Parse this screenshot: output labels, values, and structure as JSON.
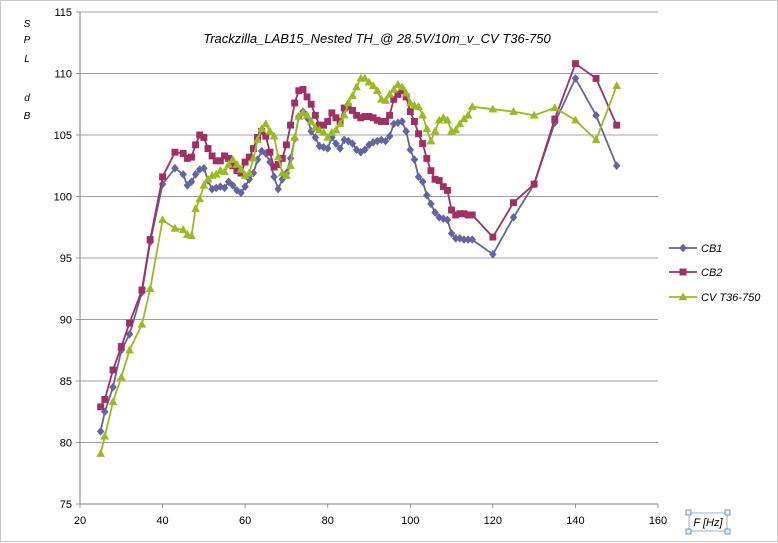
{
  "chart_data": {
    "type": "line",
    "title": "Trackzilla_LAB15_Nested TH_@ 28.5V/10m_v_CV T36-750",
    "ylabel_chars": [
      "S",
      "P",
      "L",
      "",
      "d",
      "B"
    ],
    "xlabel": "F [Hz]",
    "xlim": [
      20,
      160
    ],
    "ylim": [
      75,
      115
    ],
    "xticks": [
      20,
      40,
      60,
      80,
      100,
      120,
      140,
      160
    ],
    "yticks": [
      75,
      80,
      85,
      90,
      95,
      100,
      105,
      110,
      115
    ],
    "grid": "horizontal",
    "legend_position": "right",
    "series": [
      {
        "name": "CB1",
        "color": "#6464a0",
        "marker": "diamond",
        "points": [
          [
            25,
            80.9
          ],
          [
            26,
            82.5
          ],
          [
            28,
            84.5
          ],
          [
            30,
            87.5
          ],
          [
            32,
            88.8
          ],
          [
            35,
            92.2
          ],
          [
            37,
            96.3
          ],
          [
            40,
            101.0
          ],
          [
            43,
            102.3
          ],
          [
            45,
            101.8
          ],
          [
            46,
            100.9
          ],
          [
            47,
            101.2
          ],
          [
            48,
            101.8
          ],
          [
            49,
            102.2
          ],
          [
            50,
            102.3
          ],
          [
            51,
            101.3
          ],
          [
            52,
            100.6
          ],
          [
            53,
            100.7
          ],
          [
            54,
            100.8
          ],
          [
            55,
            100.7
          ],
          [
            56,
            101.2
          ],
          [
            57,
            100.9
          ],
          [
            58,
            100.5
          ],
          [
            59,
            100.3
          ],
          [
            60,
            100.8
          ],
          [
            61,
            101.4
          ],
          [
            62,
            101.9
          ],
          [
            63,
            103.0
          ],
          [
            64,
            103.7
          ],
          [
            65,
            103.5
          ],
          [
            66,
            102.8
          ],
          [
            67,
            101.6
          ],
          [
            68,
            100.6
          ],
          [
            69,
            101.4
          ],
          [
            70,
            101.9
          ],
          [
            71,
            103.1
          ],
          [
            72,
            104.7
          ],
          [
            73,
            106.5
          ],
          [
            74,
            106.9
          ],
          [
            75,
            106.4
          ],
          [
            76,
            105.3
          ],
          [
            77,
            104.8
          ],
          [
            78,
            104.1
          ],
          [
            79,
            104.0
          ],
          [
            80,
            103.9
          ],
          [
            81,
            104.8
          ],
          [
            82,
            104.3
          ],
          [
            83,
            103.9
          ],
          [
            84,
            104.6
          ],
          [
            85,
            104.5
          ],
          [
            86,
            104.3
          ],
          [
            87,
            103.8
          ],
          [
            88,
            103.6
          ],
          [
            89,
            103.8
          ],
          [
            90,
            104.2
          ],
          [
            91,
            104.4
          ],
          [
            92,
            104.5
          ],
          [
            93,
            104.6
          ],
          [
            94,
            104.5
          ],
          [
            95,
            104.9
          ],
          [
            96,
            105.9
          ],
          [
            97,
            106.0
          ],
          [
            98,
            106.1
          ],
          [
            99,
            105.3
          ],
          [
            100,
            103.8
          ],
          [
            101,
            103.0
          ],
          [
            102,
            101.6
          ],
          [
            103,
            101.2
          ],
          [
            104,
            100.1
          ],
          [
            105,
            99.4
          ],
          [
            106,
            98.7
          ],
          [
            107,
            98.3
          ],
          [
            108,
            98.2
          ],
          [
            109,
            98.1
          ],
          [
            110,
            97.0
          ],
          [
            111,
            96.6
          ],
          [
            112,
            96.6
          ],
          [
            113,
            96.5
          ],
          [
            114,
            96.5
          ],
          [
            115,
            96.5
          ],
          [
            120,
            95.3
          ],
          [
            125,
            98.3
          ],
          [
            130,
            101.0
          ],
          [
            135,
            106.0
          ],
          [
            140,
            109.6
          ],
          [
            145,
            106.6
          ],
          [
            150,
            102.5
          ]
        ]
      },
      {
        "name": "CB2",
        "color": "#a03064",
        "marker": "square",
        "points": [
          [
            25,
            82.9
          ],
          [
            26,
            83.5
          ],
          [
            28,
            85.9
          ],
          [
            30,
            87.8
          ],
          [
            32,
            89.7
          ],
          [
            35,
            92.4
          ],
          [
            37,
            96.5
          ],
          [
            40,
            101.6
          ],
          [
            43,
            103.6
          ],
          [
            45,
            103.5
          ],
          [
            46,
            103.1
          ],
          [
            47,
            103.2
          ],
          [
            48,
            104.2
          ],
          [
            49,
            105.0
          ],
          [
            50,
            104.8
          ],
          [
            51,
            103.9
          ],
          [
            52,
            103.3
          ],
          [
            53,
            102.9
          ],
          [
            54,
            102.9
          ],
          [
            55,
            103.3
          ],
          [
            56,
            103.1
          ],
          [
            57,
            102.5
          ],
          [
            58,
            102.1
          ],
          [
            59,
            101.9
          ],
          [
            60,
            102.8
          ],
          [
            61,
            103.2
          ],
          [
            62,
            103.9
          ],
          [
            63,
            104.8
          ],
          [
            64,
            105.3
          ],
          [
            65,
            104.9
          ],
          [
            66,
            103.6
          ],
          [
            67,
            102.4
          ],
          [
            68,
            102.6
          ],
          [
            69,
            103.1
          ],
          [
            70,
            104.2
          ],
          [
            71,
            105.8
          ],
          [
            72,
            107.6
          ],
          [
            73,
            108.6
          ],
          [
            74,
            108.7
          ],
          [
            75,
            108.1
          ],
          [
            76,
            107.5
          ],
          [
            77,
            106.6
          ],
          [
            78,
            105.8
          ],
          [
            79,
            105.8
          ],
          [
            80,
            106.1
          ],
          [
            81,
            106.8
          ],
          [
            82,
            106.4
          ],
          [
            83,
            106.1
          ],
          [
            84,
            107.2
          ],
          [
            85,
            107.3
          ],
          [
            86,
            107.0
          ],
          [
            87,
            106.6
          ],
          [
            88,
            106.4
          ],
          [
            89,
            106.5
          ],
          [
            90,
            106.5
          ],
          [
            91,
            106.4
          ],
          [
            92,
            106.2
          ],
          [
            93,
            106.1
          ],
          [
            94,
            106.1
          ],
          [
            95,
            106.6
          ],
          [
            96,
            107.9
          ],
          [
            97,
            108.3
          ],
          [
            98,
            108.6
          ],
          [
            99,
            108.1
          ],
          [
            100,
            106.9
          ],
          [
            101,
            106.1
          ],
          [
            102,
            105.1
          ],
          [
            103,
            104.3
          ],
          [
            104,
            103.1
          ],
          [
            105,
            102.1
          ],
          [
            106,
            101.4
          ],
          [
            107,
            101.3
          ],
          [
            108,
            100.8
          ],
          [
            109,
            100.5
          ],
          [
            110,
            98.9
          ],
          [
            111,
            98.5
          ],
          [
            112,
            98.6
          ],
          [
            113,
            98.6
          ],
          [
            114,
            98.5
          ],
          [
            115,
            98.5
          ],
          [
            120,
            96.7
          ],
          [
            125,
            99.5
          ],
          [
            130,
            101.0
          ],
          [
            135,
            106.3
          ],
          [
            140,
            110.8
          ],
          [
            145,
            109.6
          ],
          [
            150,
            105.8
          ]
        ]
      },
      {
        "name": "CV T36-750",
        "color": "#99bb22",
        "marker": "triangle",
        "points": [
          [
            25,
            79.1
          ],
          [
            26,
            80.5
          ],
          [
            28,
            83.3
          ],
          [
            30,
            85.3
          ],
          [
            32,
            87.5
          ],
          [
            35,
            89.6
          ],
          [
            37,
            92.5
          ],
          [
            40,
            98.1
          ],
          [
            43,
            97.4
          ],
          [
            45,
            97.3
          ],
          [
            46,
            96.9
          ],
          [
            47,
            96.8
          ],
          [
            48,
            99.0
          ],
          [
            49,
            99.8
          ],
          [
            50,
            100.9
          ],
          [
            51,
            101.4
          ],
          [
            52,
            101.7
          ],
          [
            53,
            101.8
          ],
          [
            54,
            102.1
          ],
          [
            55,
            102.0
          ],
          [
            56,
            102.6
          ],
          [
            57,
            103.0
          ],
          [
            58,
            102.6
          ],
          [
            59,
            102.2
          ],
          [
            60,
            101.7
          ],
          [
            61,
            101.9
          ],
          [
            62,
            103.1
          ],
          [
            63,
            104.6
          ],
          [
            64,
            105.5
          ],
          [
            65,
            105.9
          ],
          [
            66,
            105.3
          ],
          [
            67,
            104.9
          ],
          [
            68,
            103.2
          ],
          [
            69,
            101.9
          ],
          [
            70,
            101.7
          ],
          [
            71,
            102.5
          ],
          [
            72,
            104.8
          ],
          [
            73,
            106.5
          ],
          [
            74,
            106.8
          ],
          [
            75,
            106.6
          ],
          [
            76,
            106.1
          ],
          [
            77,
            105.6
          ],
          [
            78,
            105.4
          ],
          [
            79,
            105.2
          ],
          [
            80,
            104.8
          ],
          [
            81,
            105.2
          ],
          [
            82,
            105.4
          ],
          [
            83,
            105.9
          ],
          [
            84,
            106.6
          ],
          [
            85,
            107.6
          ],
          [
            86,
            108.2
          ],
          [
            87,
            108.9
          ],
          [
            88,
            109.6
          ],
          [
            89,
            109.6
          ],
          [
            90,
            109.3
          ],
          [
            91,
            109.0
          ],
          [
            92,
            108.6
          ],
          [
            93,
            107.9
          ],
          [
            94,
            107.8
          ],
          [
            95,
            108.3
          ],
          [
            96,
            108.7
          ],
          [
            97,
            109.1
          ],
          [
            98,
            108.9
          ],
          [
            99,
            108.4
          ],
          [
            100,
            107.6
          ],
          [
            101,
            107.4
          ],
          [
            102,
            107.3
          ],
          [
            103,
            106.6
          ],
          [
            104,
            105.5
          ],
          [
            105,
            104.5
          ],
          [
            106,
            105.3
          ],
          [
            107,
            106.2
          ],
          [
            108,
            106.4
          ],
          [
            109,
            106.2
          ],
          [
            110,
            105.3
          ],
          [
            111,
            105.4
          ],
          [
            112,
            105.9
          ],
          [
            113,
            106.3
          ],
          [
            114,
            106.6
          ],
          [
            115,
            107.3
          ],
          [
            120,
            107.1
          ],
          [
            125,
            106.9
          ],
          [
            130,
            106.6
          ],
          [
            135,
            107.2
          ],
          [
            140,
            106.2
          ],
          [
            145,
            104.6
          ],
          [
            150,
            109.0
          ]
        ]
      }
    ]
  }
}
